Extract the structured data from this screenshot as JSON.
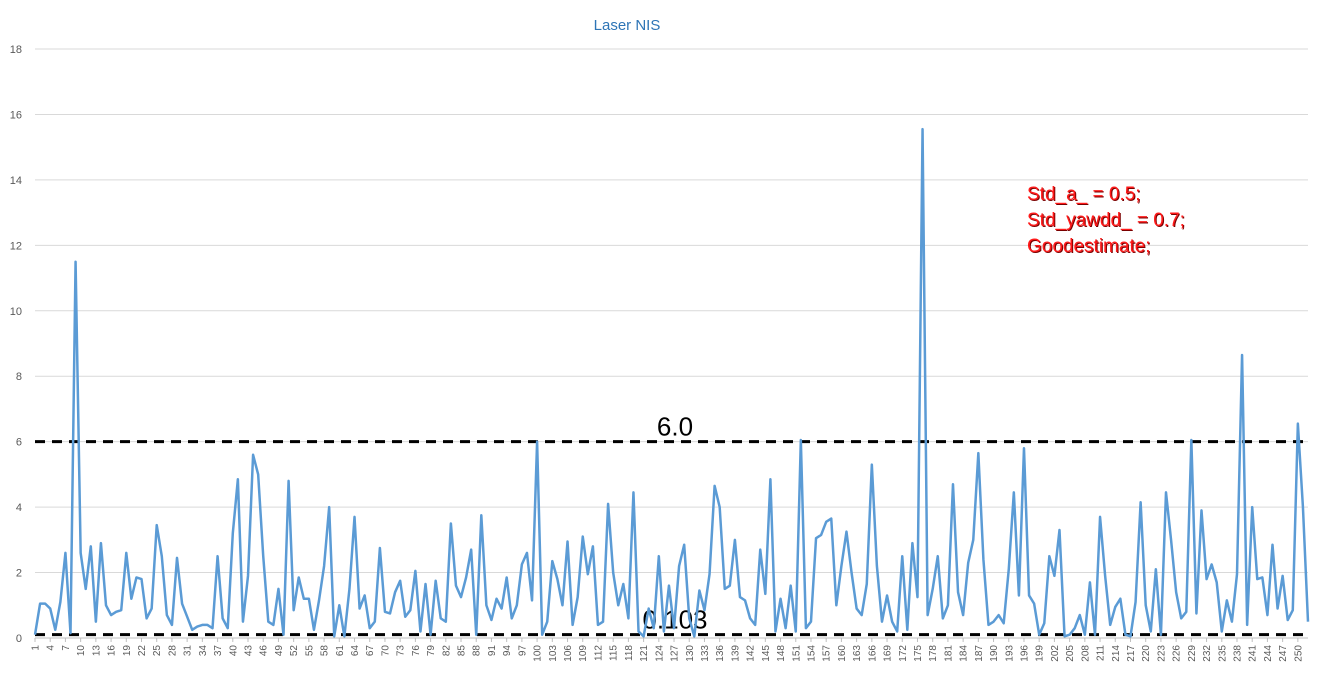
{
  "chart_data": {
    "type": "line",
    "title": "Laser NIS",
    "xlabel": "",
    "ylabel": "",
    "ylim": [
      0,
      18
    ],
    "yticks": [
      0,
      2,
      4,
      6,
      8,
      10,
      12,
      14,
      16,
      18
    ],
    "x_tick_step": 3,
    "grid": "horizontal",
    "legend": "none",
    "series_color": "#5b9bd5",
    "series": [
      {
        "values": [
          0.1,
          1.05,
          1.05,
          0.9,
          0.25,
          1.1,
          2.6,
          0.15,
          11.5,
          2.6,
          1.5,
          2.8,
          0.5,
          2.9,
          1.0,
          0.7,
          0.8,
          0.85,
          2.6,
          1.2,
          1.85,
          1.8,
          0.6,
          0.9,
          3.45,
          2.5,
          0.7,
          0.4,
          2.45,
          1.05,
          0.65,
          0.25,
          0.35,
          0.4,
          0.4,
          0.3,
          2.5,
          0.6,
          0.3,
          3.2,
          4.85,
          0.5,
          1.9,
          5.6,
          5.0,
          2.5,
          0.5,
          0.4,
          1.5,
          0.1,
          4.8,
          0.85,
          1.85,
          1.2,
          1.2,
          0.25,
          1.15,
          2.2,
          4.0,
          0.05,
          1.0,
          0.05,
          1.5,
          3.7,
          0.9,
          1.3,
          0.3,
          0.5,
          2.75,
          0.8,
          0.75,
          1.4,
          1.75,
          0.65,
          0.85,
          2.05,
          0.2,
          1.65,
          0.1,
          1.75,
          0.6,
          0.5,
          3.5,
          1.6,
          1.25,
          1.85,
          2.7,
          0.1,
          3.75,
          1.0,
          0.55,
          1.2,
          0.9,
          1.85,
          0.6,
          1.0,
          2.25,
          2.6,
          1.15,
          6.0,
          0.1,
          0.5,
          2.35,
          1.8,
          1.0,
          2.95,
          0.4,
          1.25,
          3.1,
          1.95,
          2.8,
          0.4,
          0.5,
          4.1,
          2.0,
          1.0,
          1.65,
          0.6,
          4.45,
          0.2,
          0.05,
          0.9,
          0.3,
          2.5,
          0.2,
          1.6,
          0.3,
          2.2,
          2.85,
          0.6,
          0.05,
          1.45,
          0.85,
          1.95,
          4.65,
          4.0,
          1.5,
          1.6,
          3.0,
          1.25,
          1.15,
          0.6,
          0.4,
          2.7,
          1.35,
          4.85,
          0.2,
          1.2,
          0.3,
          1.6,
          0.2,
          6.05,
          0.3,
          0.5,
          3.05,
          3.15,
          3.55,
          3.65,
          1.0,
          2.2,
          3.25,
          2.0,
          0.9,
          0.7,
          1.65,
          5.3,
          2.2,
          0.5,
          1.3,
          0.5,
          0.2,
          2.5,
          0.25,
          2.9,
          1.25,
          15.55,
          0.7,
          1.5,
          2.5,
          0.6,
          1.0,
          4.7,
          1.4,
          0.7,
          2.3,
          3.0,
          5.65,
          2.4,
          0.4,
          0.5,
          0.7,
          0.45,
          2.1,
          4.45,
          1.3,
          5.8,
          1.3,
          1.05,
          0.1,
          0.45,
          2.5,
          1.9,
          3.3,
          0.05,
          0.1,
          0.3,
          0.7,
          0.1,
          1.7,
          0.1,
          3.7,
          1.9,
          0.4,
          0.95,
          1.2,
          0.1,
          0.05,
          1.1,
          4.15,
          1.0,
          0.2,
          2.1,
          0.1,
          4.45,
          3.0,
          1.4,
          0.6,
          0.8,
          6.05,
          0.75,
          3.9,
          1.8,
          2.25,
          1.7,
          0.2,
          1.15,
          0.5,
          1.95,
          8.65,
          0.4,
          4.0,
          1.8,
          1.85,
          0.7,
          2.85,
          0.9,
          1.9,
          0.55,
          0.85,
          6.55,
          4.0,
          0.5
        ]
      }
    ],
    "reference_lines": [
      {
        "value": 6.0,
        "label": "6.0"
      },
      {
        "value": 0.103,
        "label": "0.103"
      }
    ],
    "annotation": [
      "Std_a_ = 0.5;",
      "Std_yawdd_ = 0.7;",
      "Goodestimate;"
    ]
  }
}
